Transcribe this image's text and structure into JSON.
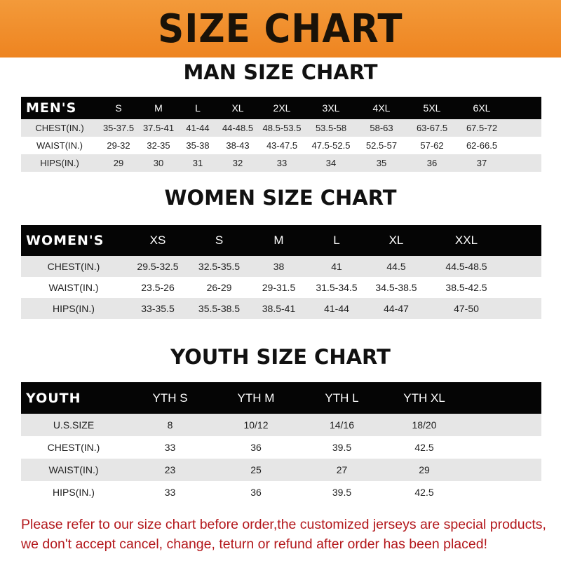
{
  "banner": {
    "title": "SIZE CHART"
  },
  "men": {
    "title": "MAN SIZE CHART",
    "header": "MEN'S",
    "sizes": [
      "S",
      "M",
      "L",
      "XL",
      "2XL",
      "3XL",
      "4XL",
      "5XL",
      "6XL"
    ],
    "rows": [
      {
        "label": "CHEST(IN.)",
        "values": [
          "35-37.5",
          "37.5-41",
          "41-44",
          "44-48.5",
          "48.5-53.5",
          "53.5-58",
          "58-63",
          "63-67.5",
          "67.5-72"
        ]
      },
      {
        "label": "WAIST(IN.)",
        "values": [
          "29-32",
          "32-35",
          "35-38",
          "38-43",
          "43-47.5",
          "47.5-52.5",
          "52.5-57",
          "57-62",
          "62-66.5"
        ]
      },
      {
        "label": "HIPS(IN.)",
        "values": [
          "29",
          "30",
          "31",
          "32",
          "33",
          "34",
          "35",
          "36",
          "37"
        ]
      }
    ]
  },
  "women": {
    "title": "WOMEN SIZE CHART",
    "header": "WOMEN'S",
    "sizes": [
      "XS",
      "S",
      "M",
      "L",
      "XL",
      "XXL"
    ],
    "rows": [
      {
        "label": "CHEST(IN.)",
        "values": [
          "29.5-32.5",
          "32.5-35.5",
          "38",
          "41",
          "44.5",
          "44.5-48.5"
        ]
      },
      {
        "label": "WAIST(IN.)",
        "values": [
          "23.5-26",
          "26-29",
          "29-31.5",
          "31.5-34.5",
          "34.5-38.5",
          "38.5-42.5"
        ]
      },
      {
        "label": "HIPS(IN.)",
        "values": [
          "33-35.5",
          "35.5-38.5",
          "38.5-41",
          "41-44",
          "44-47",
          "47-50"
        ]
      }
    ]
  },
  "youth": {
    "title": "YOUTH SIZE CHART",
    "header": "YOUTH",
    "sizes": [
      "YTH S",
      "YTH M",
      "YTH L",
      "YTH XL"
    ],
    "rows": [
      {
        "label": "U.S.SIZE",
        "values": [
          "8",
          "10/12",
          "14/16",
          "18/20"
        ]
      },
      {
        "label": "CHEST(IN.)",
        "values": [
          "33",
          "36",
          "39.5",
          "42.5"
        ]
      },
      {
        "label": "WAIST(IN.)",
        "values": [
          "23",
          "25",
          "27",
          "29"
        ]
      },
      {
        "label": "HIPS(IN.)",
        "values": [
          "33",
          "36",
          "39.5",
          "42.5"
        ]
      }
    ]
  },
  "note": {
    "line1": "Please refer to our size chart before order,the customized jerseys are special products,",
    "line2": "we don't accept cancel, change, teturn or refund after order has been placed!"
  },
  "colors": {
    "banner": "#ee8420",
    "header_row": "#050505",
    "stripe": "#e6e6e6",
    "note": "#b3171b"
  }
}
